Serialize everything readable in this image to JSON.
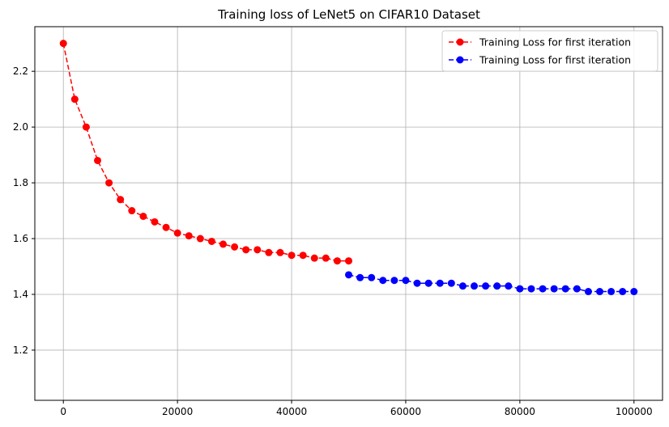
{
  "chart_data": {
    "type": "line",
    "title": "Training loss of LeNet5 on CIFAR10 Dataset",
    "xlabel": "",
    "ylabel": "",
    "xlim": [
      -5000,
      105000
    ],
    "ylim": [
      1.02,
      2.36
    ],
    "xticks": [
      0,
      20000,
      40000,
      60000,
      80000,
      100000
    ],
    "xtick_labels": [
      "0",
      "20000",
      "40000",
      "60000",
      "80000",
      "100000"
    ],
    "yticks": [
      1.2,
      1.4,
      1.6,
      1.8,
      2.0,
      2.2
    ],
    "ytick_labels": [
      "1.2",
      "1.4",
      "1.6",
      "1.8",
      "2.0",
      "2.2"
    ],
    "grid": true,
    "legend_position": "top-right",
    "series": [
      {
        "name": "Training Loss for first iteration",
        "color": "#ff0000",
        "x": [
          0,
          2000,
          4000,
          6000,
          8000,
          10000,
          12000,
          14000,
          16000,
          18000,
          20000,
          22000,
          24000,
          26000,
          28000,
          30000,
          32000,
          34000,
          36000,
          38000,
          40000,
          42000,
          44000,
          46000,
          48000,
          50000
        ],
        "y": [
          2.3,
          2.1,
          2.0,
          1.88,
          1.8,
          1.74,
          1.7,
          1.68,
          1.66,
          1.64,
          1.62,
          1.61,
          1.6,
          1.59,
          1.58,
          1.57,
          1.56,
          1.56,
          1.55,
          1.55,
          1.54,
          1.54,
          1.53,
          1.53,
          1.52,
          1.52
        ]
      },
      {
        "name": "Training Loss for first iteration",
        "color": "#0000ff",
        "x": [
          50000,
          52000,
          54000,
          56000,
          58000,
          60000,
          62000,
          64000,
          66000,
          68000,
          70000,
          72000,
          74000,
          76000,
          78000,
          80000,
          82000,
          84000,
          86000,
          88000,
          90000,
          92000,
          94000,
          96000,
          98000,
          100000
        ],
        "y": [
          1.47,
          1.46,
          1.46,
          1.45,
          1.45,
          1.45,
          1.44,
          1.44,
          1.44,
          1.44,
          1.43,
          1.43,
          1.43,
          1.43,
          1.43,
          1.42,
          1.42,
          1.42,
          1.42,
          1.42,
          1.42,
          1.41,
          1.41,
          1.41,
          1.41,
          1.41
        ]
      }
    ]
  }
}
